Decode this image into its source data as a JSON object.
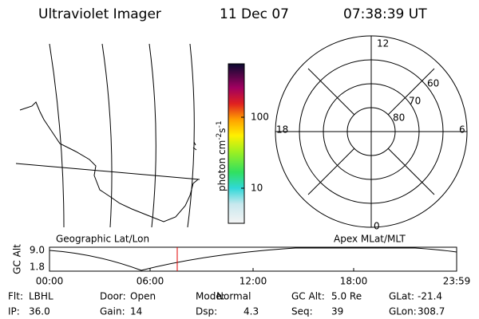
{
  "header": {
    "title": "Ultraviolet Imager",
    "date": "11 Dec 07",
    "time": "07:38:39 UT"
  },
  "colorbar": {
    "label": {
      "unit1": "photon cm",
      "exp1": "-2",
      "unit2": "s",
      "exp2": "-1"
    },
    "ticks": [
      "100",
      "10"
    ]
  },
  "map": {
    "caption": "Geographic Lat/Lon"
  },
  "polar": {
    "caption": "Apex MLat/MLT",
    "mlt": {
      "top": "12",
      "bottom": "0",
      "left": "18",
      "right": "6"
    },
    "lat": [
      "60",
      "70",
      "80"
    ]
  },
  "altitude": {
    "ylabel": "GC Alt",
    "yticks": [
      "9.0",
      "1.8"
    ],
    "xticks": [
      "00:00",
      "06:00",
      "12:00",
      "18:00",
      "23:59"
    ]
  },
  "footer": {
    "rows": [
      [
        {
          "label": "Flt:",
          "value": "LBHL"
        },
        {
          "label": "Door:",
          "value": "Open"
        },
        {
          "label": "Mode:",
          "value": "Normal"
        },
        {
          "label": "GC Alt:",
          "value": "5.0 Re"
        },
        {
          "label": "GLat:",
          "value": "-21.4"
        }
      ],
      [
        {
          "label": "IP:",
          "value": "36.0"
        },
        {
          "label": "Gain:",
          "value": "14"
        },
        {
          "label": "Dsp:",
          "value": "4.3"
        },
        {
          "label": "Seq:",
          "value": "39"
        },
        {
          "label": "GLon:",
          "value": "308.7"
        }
      ]
    ]
  }
}
